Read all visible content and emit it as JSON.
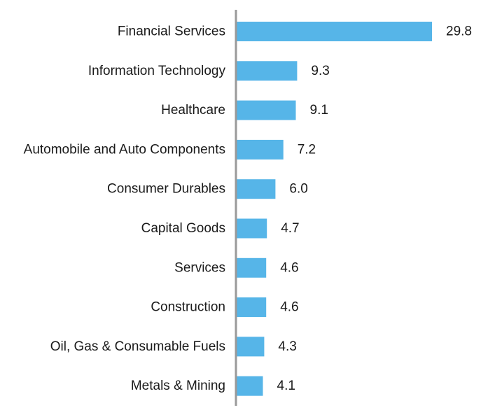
{
  "colors": {
    "bar": "#56B5E8",
    "axis": "#9a9a9a",
    "text": "#1a1a1a"
  },
  "chart_data": {
    "type": "bar",
    "orientation": "horizontal",
    "categories": [
      "Financial Services",
      "Information Technology",
      "Healthcare",
      "Automobile and Auto Components",
      "Consumer Durables",
      "Capital Goods",
      "Services",
      "Construction",
      "Oil, Gas & Consumable Fuels",
      "Metals & Mining"
    ],
    "values": [
      29.8,
      9.3,
      9.1,
      7.2,
      6.0,
      4.7,
      4.6,
      4.6,
      4.3,
      4.1
    ],
    "value_labels": [
      "29.8",
      "9.3",
      "9.1",
      "7.2",
      "6.0",
      "4.7",
      "4.6",
      "4.6",
      "4.3",
      "4.1"
    ],
    "title": "",
    "xlabel": "",
    "ylabel": "",
    "xlim": [
      0,
      29.8
    ],
    "grid": false,
    "legend": "none"
  }
}
